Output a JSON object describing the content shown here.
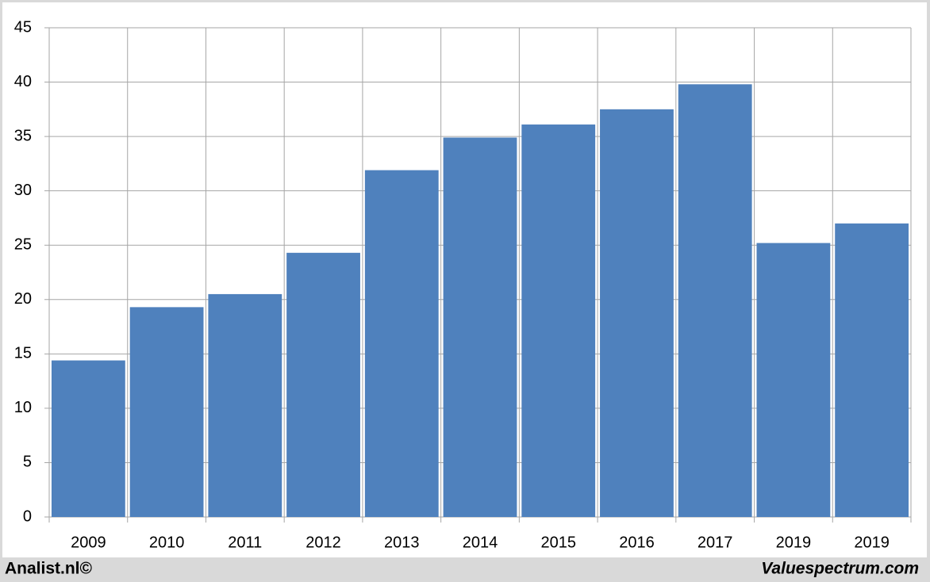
{
  "chart_data": {
    "type": "bar",
    "categories": [
      "2009",
      "2010",
      "2011",
      "2012",
      "2013",
      "2014",
      "2015",
      "2016",
      "2017",
      "2019",
      "2019"
    ],
    "values": [
      14.4,
      19.3,
      20.5,
      24.3,
      31.9,
      34.9,
      36.1,
      37.5,
      39.8,
      25.2,
      27.0
    ],
    "color": "#4f81bd",
    "ylim": [
      0,
      45
    ],
    "yticks": [
      0,
      5,
      10,
      15,
      20,
      25,
      30,
      35,
      40,
      45
    ],
    "grid": true
  },
  "footer": {
    "left": "Analist.nl©",
    "right": "Valuespectrum.com"
  }
}
